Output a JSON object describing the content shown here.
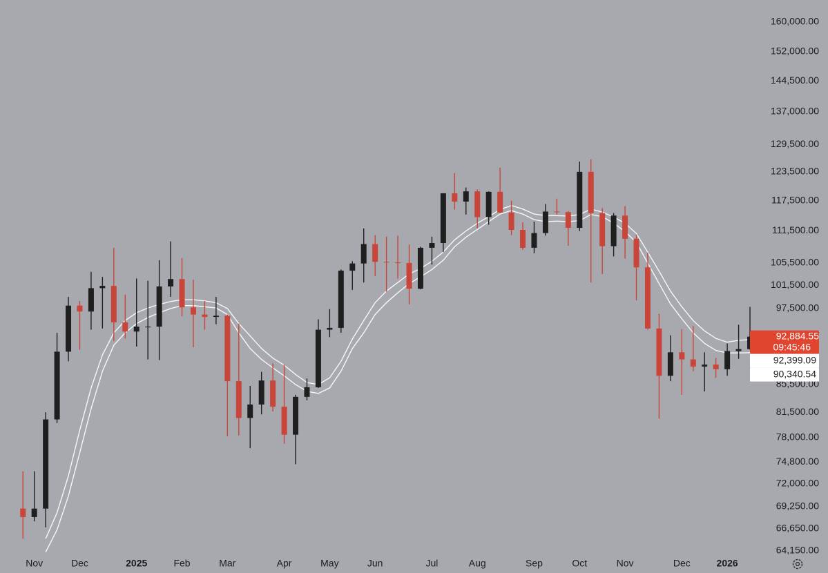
{
  "chart_data": {
    "type": "candlestick",
    "log_scale": true,
    "ylim": [
      63600,
      166200
    ],
    "yticks": [
      {
        "value": 160000,
        "label": "160,000.00"
      },
      {
        "value": 152000,
        "label": "152,000.00"
      },
      {
        "value": 144500,
        "label": "144,500.00"
      },
      {
        "value": 137000,
        "label": "137,000.00"
      },
      {
        "value": 129500,
        "label": "129,500.00"
      },
      {
        "value": 123500,
        "label": "123,500.00"
      },
      {
        "value": 117500,
        "label": "117,500.00"
      },
      {
        "value": 111500,
        "label": "111,500.00"
      },
      {
        "value": 105500,
        "label": "105,500.00"
      },
      {
        "value": 101500,
        "label": "101,500.00"
      },
      {
        "value": 97500,
        "label": "97,500.00"
      },
      {
        "value": 85500,
        "label": "85,500.00"
      },
      {
        "value": 81500,
        "label": "81,500.00"
      },
      {
        "value": 78000,
        "label": "78,000.00"
      },
      {
        "value": 74800,
        "label": "74,800.00"
      },
      {
        "value": 72000,
        "label": "72,000.00"
      },
      {
        "value": 69250,
        "label": "69,250.00"
      },
      {
        "value": 66650,
        "label": "66,650.00"
      },
      {
        "value": 64150,
        "label": "64,150.00"
      }
    ],
    "categories": [
      null,
      "Nov",
      null,
      null,
      null,
      "Dec",
      null,
      null,
      null,
      null,
      "2025",
      null,
      null,
      null,
      "Feb",
      null,
      null,
      null,
      "Mar",
      null,
      null,
      null,
      null,
      "Apr",
      null,
      null,
      null,
      "May",
      null,
      null,
      null,
      "Jun",
      null,
      null,
      null,
      null,
      "Jul",
      null,
      null,
      null,
      "Aug",
      null,
      null,
      null,
      null,
      "Sep",
      null,
      null,
      null,
      "Oct",
      null,
      null,
      null,
      "Nov",
      null,
      null,
      null,
      null,
      "Dec",
      null,
      null,
      null,
      "2026",
      null,
      null
    ],
    "up_color": "#1f1f1f",
    "down_color": "#c9453a",
    "open": [
      69000,
      68000,
      69000,
      80500,
      90500,
      98000,
      97000,
      101000,
      101400,
      95200,
      93700,
      94500,
      94500,
      101300,
      102600,
      97700,
      96500,
      96100,
      96300,
      86000,
      80700,
      82600,
      86100,
      82300,
      78400,
      83700,
      85100,
      94000,
      94300,
      104100,
      105400,
      109000,
      105700,
      105600,
      105500,
      100900,
      108300,
      109200,
      119000,
      117300,
      119400,
      114200,
      119300,
      115100,
      111700,
      108300,
      111100,
      115300,
      115200,
      112100,
      123500,
      115000,
      108600,
      114500,
      110000,
      104700,
      94200,
      86800,
      90400,
      89300,
      88200,
      88500,
      87800,
      90600,
      90900
    ],
    "high": [
      73600,
      73600,
      81500,
      93500,
      99500,
      98800,
      103900,
      103000,
      108300,
      99900,
      102700,
      102300,
      106000,
      109500,
      106400,
      102500,
      98800,
      99500,
      96500,
      95000,
      85300,
      87400,
      88700,
      88500,
      84000,
      86400,
      95700,
      97400,
      104300,
      105800,
      112000,
      110700,
      110400,
      110600,
      108900,
      108500,
      110400,
      119000,
      123200,
      120200,
      119800,
      119400,
      124400,
      117500,
      113200,
      113300,
      116800,
      117900,
      115400,
      125700,
      126200,
      116000,
      115000,
      116400,
      110800,
      107400,
      96600,
      93100,
      94100,
      94600,
      90400,
      89500,
      91800,
      94800,
      97800
    ],
    "low": [
      65500,
      67500,
      66800,
      80000,
      89000,
      90800,
      94000,
      94200,
      92200,
      92600,
      91300,
      89300,
      89200,
      99500,
      96200,
      91200,
      94000,
      94900,
      78200,
      78300,
      76600,
      81200,
      81600,
      77200,
      74500,
      83200,
      85000,
      92800,
      93500,
      100700,
      102000,
      103100,
      100400,
      102700,
      98200,
      100800,
      105200,
      107500,
      115700,
      114700,
      112000,
      112700,
      115000,
      110700,
      107900,
      107300,
      110600,
      114700,
      108700,
      111500,
      102000,
      103500,
      106700,
      106300,
      98900,
      94000,
      80600,
      86000,
      84000,
      87500,
      84500,
      86500,
      86800,
      89400,
      90800
    ],
    "close": [
      68000,
      69000,
      80500,
      90500,
      98000,
      97000,
      101000,
      101400,
      95200,
      93700,
      94500,
      94500,
      101300,
      102600,
      97700,
      96500,
      96100,
      96300,
      86000,
      80700,
      82600,
      86100,
      82300,
      78400,
      83700,
      85100,
      94000,
      94300,
      104100,
      105400,
      109000,
      105700,
      105600,
      105500,
      100900,
      108300,
      109200,
      119000,
      117300,
      119400,
      114200,
      119300,
      115100,
      111700,
      108300,
      111100,
      115300,
      115200,
      112100,
      123500,
      115000,
      108600,
      114500,
      110000,
      104700,
      94200,
      86800,
      90400,
      89300,
      88200,
      88500,
      87800,
      90600,
      90900,
      92884.55
    ],
    "last_price": {
      "value": 92884.55,
      "label": "92,884.55",
      "countdown": "09:45:46",
      "color": "#e0452f"
    },
    "ma_series": [
      {
        "color": "#ffffff",
        "end_label": "92,399.09",
        "values": [
          null,
          null,
          65500,
          68500,
          73000,
          79000,
          85000,
          90000,
          93500,
          95500,
          96800,
          97600,
          98200,
          98700,
          99000,
          99000,
          98800,
          98500,
          97500,
          95000,
          93000,
          91000,
          89500,
          88400,
          87000,
          85800,
          85500,
          86500,
          89000,
          92500,
          95500,
          98500,
          100500,
          102000,
          103500,
          104500,
          105800,
          107500,
          109800,
          111500,
          113000,
          114300,
          115700,
          116500,
          115800,
          114800,
          114500,
          114500,
          114400,
          114700,
          115800,
          115200,
          114200,
          113000,
          111000,
          107500,
          104000,
          100500,
          97800,
          95500,
          93800,
          92600,
          92000,
          92300,
          92399.09
        ]
      },
      {
        "color": "#ffffff",
        "end_label": "90,340.54",
        "values": [
          null,
          null,
          64000,
          66500,
          70500,
          76000,
          82000,
          87500,
          91500,
          93500,
          95000,
          96000,
          96800,
          97500,
          98000,
          98000,
          97800,
          97600,
          96500,
          93500,
          91000,
          89300,
          88000,
          86800,
          85500,
          84500,
          84200,
          85000,
          87500,
          91000,
          93500,
          96500,
          98500,
          100200,
          101800,
          103000,
          104300,
          106000,
          108500,
          110300,
          111800,
          113300,
          114800,
          115500,
          114800,
          113700,
          113300,
          113400,
          113300,
          113500,
          114700,
          114300,
          113000,
          111400,
          109300,
          105500,
          101800,
          98300,
          95800,
          93500,
          91800,
          90700,
          90300,
          90300,
          90340.54
        ]
      }
    ]
  }
}
